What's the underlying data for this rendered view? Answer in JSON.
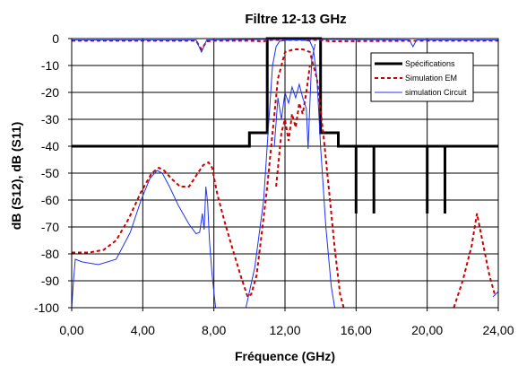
{
  "chart_data": {
    "type": "line",
    "title": "Filtre 12-13 GHz",
    "xlabel": "Fréquence (GHz)",
    "ylabel": "dB (S12), dB (S11)",
    "xlim": [
      0,
      24
    ],
    "ylim": [
      -100,
      0
    ],
    "xticks": [
      0,
      4,
      8,
      12,
      16,
      20,
      24
    ],
    "xtick_labels": [
      "0,00",
      "4,00",
      "8,00",
      "12,00",
      "16,00",
      "20,00",
      "24,00"
    ],
    "yticks": [
      0,
      -10,
      -20,
      -30,
      -40,
      -50,
      -60,
      -70,
      -80,
      -90,
      -100
    ],
    "ytick_labels": [
      "0",
      "-10",
      "-20",
      "-30",
      "-40",
      "-50",
      "-60",
      "-70",
      "-80",
      "-90",
      "-100"
    ],
    "grid": true,
    "legend_position": "top-right",
    "series": [
      {
        "name": "Spécifications",
        "color": "#000000",
        "style": "solid-thick",
        "segments": [
          [
            [
              0,
              -40
            ],
            [
              10,
              -40
            ],
            [
              10,
              -35
            ],
            [
              11,
              -35
            ],
            [
              11,
              0
            ],
            [
              14,
              0
            ],
            [
              14,
              -35
            ],
            [
              15,
              -35
            ],
            [
              15,
              -40
            ],
            [
              24,
              -40
            ]
          ],
          [
            [
              16,
              -40
            ],
            [
              16,
              -65
            ]
          ],
          [
            [
              17,
              -40
            ],
            [
              17,
              -65
            ]
          ],
          [
            [
              20,
              -40
            ],
            [
              20,
              -65
            ]
          ],
          [
            [
              21,
              -40
            ],
            [
              21,
              -65
            ]
          ]
        ]
      },
      {
        "name": "Simulation EM",
        "color": "#cc0000",
        "style": "dashed",
        "segments": [
          [
            [
              0,
              -79.5
            ],
            [
              1,
              -79.5
            ],
            [
              1.8,
              -78.5
            ],
            [
              2.5,
              -75
            ],
            [
              3.2,
              -67
            ],
            [
              3.9,
              -57
            ],
            [
              4.5,
              -50
            ],
            [
              4.9,
              -48
            ],
            [
              5.2,
              -49
            ],
            [
              5.6,
              -52
            ],
            [
              6.1,
              -55
            ],
            [
              6.6,
              -55
            ],
            [
              7,
              -51
            ],
            [
              7.4,
              -47
            ],
            [
              7.7,
              -46
            ],
            [
              7.9,
              -48
            ],
            [
              8.2,
              -58
            ],
            [
              8.6,
              -68
            ],
            [
              9,
              -77
            ],
            [
              9.5,
              -88
            ],
            [
              9.9,
              -96
            ],
            [
              10.1,
              -95
            ],
            [
              10.4,
              -88
            ],
            [
              10.7,
              -72
            ],
            [
              11,
              -55
            ],
            [
              11.3,
              -35
            ],
            [
              11.6,
              -15
            ],
            [
              12,
              -5
            ],
            [
              12.5,
              -4
            ],
            [
              13,
              -4
            ],
            [
              13.4,
              -5
            ],
            [
              13.8,
              -15
            ],
            [
              14.2,
              -38
            ],
            [
              14.5,
              -58
            ],
            [
              14.8,
              -78
            ],
            [
              15.1,
              -95
            ],
            [
              15.3,
              -100
            ]
          ],
          [
            [
              11.5,
              -55
            ],
            [
              11.8,
              -35
            ],
            [
              12,
              -30
            ],
            [
              12.2,
              -38
            ],
            [
              12.4,
              -28
            ],
            [
              12.6,
              -33
            ],
            [
              12.8,
              -24
            ],
            [
              13,
              -28
            ],
            [
              13.2,
              -20
            ],
            [
              13.4,
              -10
            ]
          ],
          [
            [
              0,
              -0.8
            ],
            [
              4,
              -0.8
            ],
            [
              5,
              -0.8
            ],
            [
              7,
              -0.8
            ],
            [
              7.3,
              -4
            ],
            [
              7.6,
              -1
            ],
            [
              8,
              -0.8
            ],
            [
              10,
              -0.8
            ],
            [
              10.8,
              -1
            ],
            [
              11.2,
              -0.5
            ],
            [
              14,
              -0.5
            ],
            [
              14.5,
              -1
            ],
            [
              20,
              -0.8
            ],
            [
              24,
              -0.8
            ]
          ],
          [
            [
              21.5,
              -100
            ],
            [
              22,
              -90
            ],
            [
              22.5,
              -77
            ],
            [
              22.8,
              -65
            ],
            [
              23.1,
              -75
            ],
            [
              23.5,
              -88
            ],
            [
              23.8,
              -95
            ]
          ]
        ]
      },
      {
        "name": "simulation Circuit",
        "color": "#2233ee",
        "style": "solid",
        "segments": [
          [
            [
              0,
              -100
            ],
            [
              0.1,
              -90
            ],
            [
              0.2,
              -82
            ],
            [
              0.6,
              -83
            ],
            [
              1.5,
              -84
            ],
            [
              2.5,
              -82
            ],
            [
              3.3,
              -72
            ],
            [
              3.9,
              -60
            ],
            [
              4.4,
              -52
            ],
            [
              4.8,
              -49
            ],
            [
              5.1,
              -50
            ],
            [
              5.5,
              -55
            ],
            [
              6,
              -62
            ],
            [
              6.6,
              -69
            ],
            [
              7,
              -72.5
            ],
            [
              7.2,
              -72
            ],
            [
              7.35,
              -65
            ],
            [
              7.45,
              -71
            ],
            [
              7.55,
              -55
            ],
            [
              7.65,
              -61
            ],
            [
              7.75,
              -75
            ],
            [
              7.9,
              -88
            ],
            [
              8.1,
              -100
            ]
          ],
          [
            [
              9.8,
              -100
            ],
            [
              10.3,
              -85
            ],
            [
              10.8,
              -60
            ],
            [
              11.1,
              -30
            ],
            [
              11.3,
              -10
            ],
            [
              11.5,
              -3
            ],
            [
              11.7,
              -1
            ],
            [
              12.2,
              -0.5
            ],
            [
              13,
              -0.5
            ],
            [
              13.4,
              -1
            ],
            [
              13.6,
              -4
            ],
            [
              13.8,
              -15
            ],
            [
              14,
              -40
            ],
            [
              14.3,
              -70
            ],
            [
              14.6,
              -92
            ],
            [
              14.8,
              -100
            ]
          ],
          [
            [
              11.4,
              -40
            ],
            [
              11.6,
              -22
            ],
            [
              11.8,
              -30
            ],
            [
              12,
              -20
            ],
            [
              12.2,
              -24
            ],
            [
              12.4,
              -18
            ],
            [
              12.6,
              -22
            ],
            [
              12.8,
              -17
            ],
            [
              13,
              -22
            ],
            [
              13.2,
              -26
            ],
            [
              13.3,
              -41
            ],
            [
              13.4,
              -24
            ],
            [
              13.5,
              -8
            ],
            [
              13.7,
              -2
            ]
          ],
          [
            [
              0,
              -0.5
            ],
            [
              7,
              -0.5
            ],
            [
              7.3,
              -5
            ],
            [
              7.6,
              -0.5
            ],
            [
              11,
              -0.3
            ],
            [
              14,
              -0.3
            ],
            [
              19,
              -0.5
            ],
            [
              19.2,
              -3
            ],
            [
              19.4,
              -0.5
            ],
            [
              24,
              -0.5
            ]
          ],
          [
            [
              23.7,
              -96
            ],
            [
              24,
              -94
            ]
          ]
        ]
      }
    ]
  }
}
